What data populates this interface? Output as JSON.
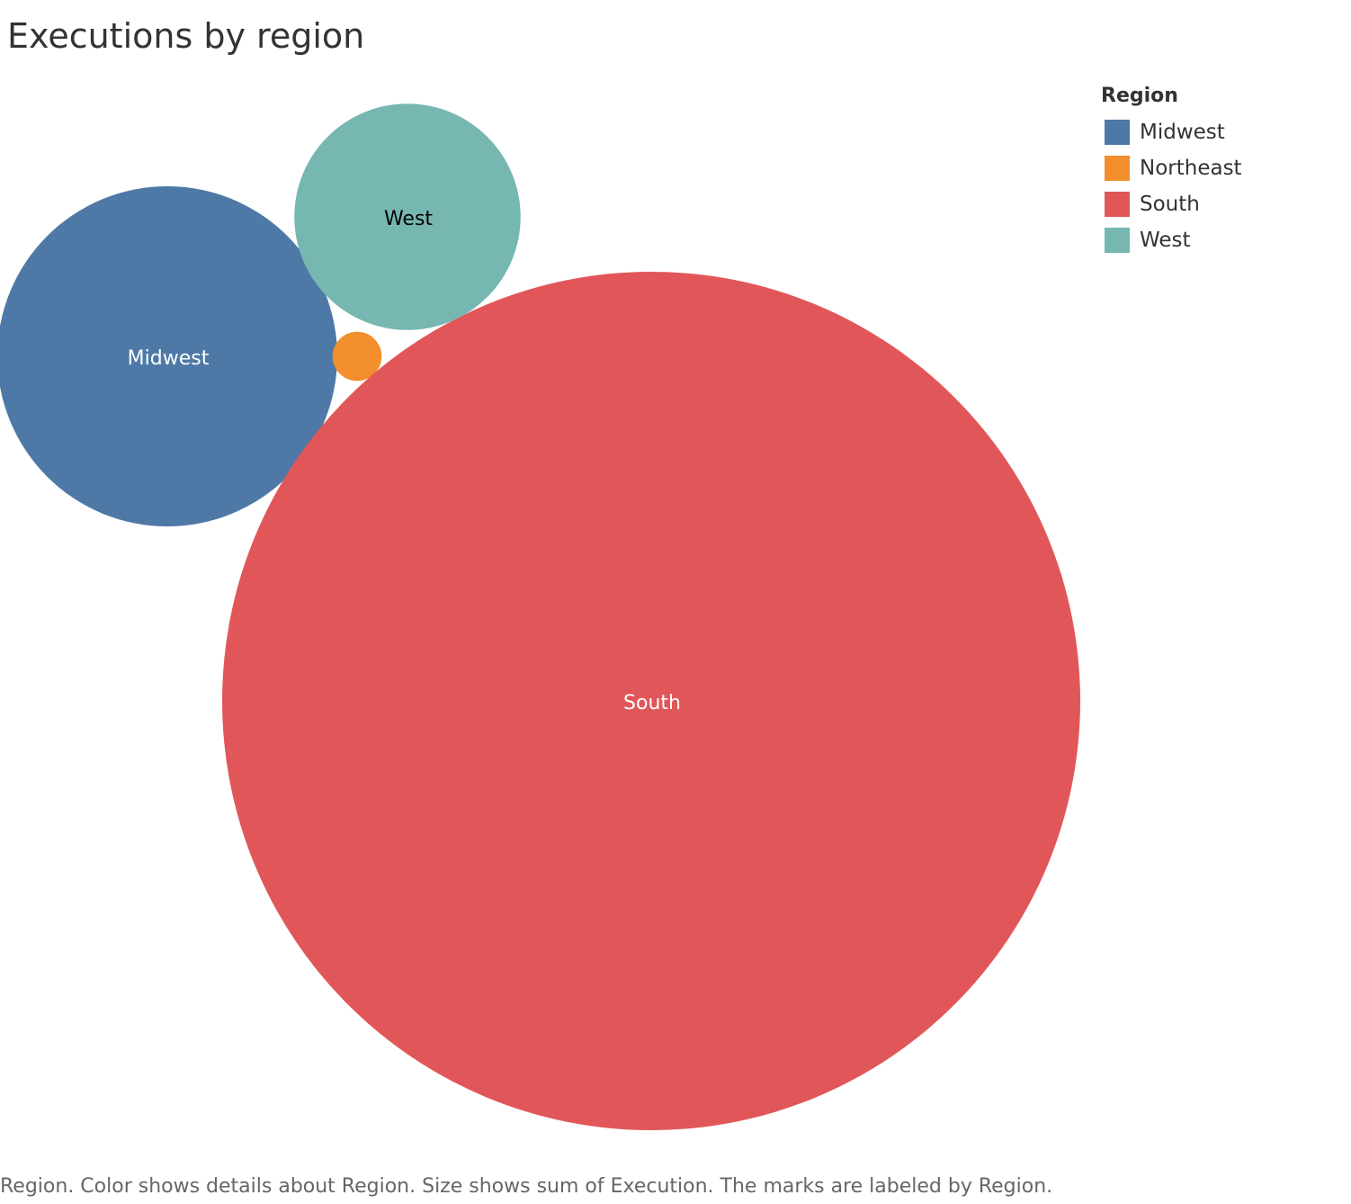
{
  "title": "Executions by region",
  "footnote": "Region.  Color shows details about Region.  Size shows sum of Execution.  The marks are labeled by Region.",
  "legend": {
    "title": "Region",
    "items": [
      {
        "label": "Midwest",
        "color": "#4e79a7"
      },
      {
        "label": "Northeast",
        "color": "#f28e2b"
      },
      {
        "label": "South",
        "color": "#e15759"
      },
      {
        "label": "West",
        "color": "#76b7b2"
      }
    ]
  },
  "chart_data": {
    "type": "bubble",
    "title": "Executions by region",
    "size_measure": "Execution",
    "series": [
      {
        "name": "Midwest",
        "value": 192,
        "color": "#4e79a7",
        "label": "Midwest",
        "label_color": "#ffffff"
      },
      {
        "name": "Northeast",
        "value": 4,
        "color": "#f28e2b",
        "label": "",
        "label_color": "#ffffff"
      },
      {
        "name": "South",
        "value": 1223,
        "color": "#e15759",
        "label": "South",
        "label_color": "#ffffff"
      },
      {
        "name": "West",
        "value": 85,
        "color": "#76b7b2",
        "label": "West",
        "label_color": "#000000"
      }
    ],
    "legend_position": "top-right"
  }
}
